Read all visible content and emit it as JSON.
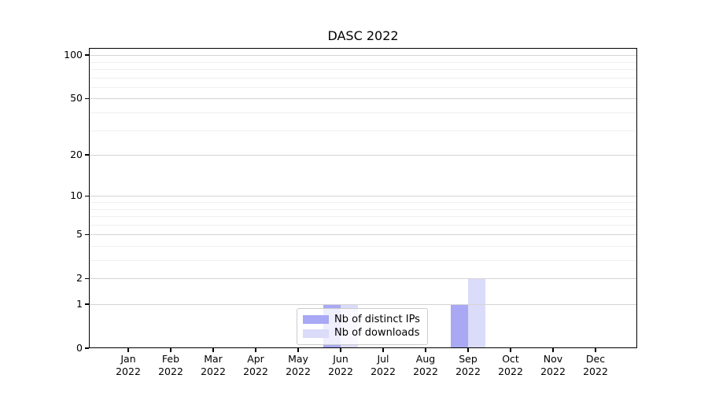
{
  "figure": {
    "background": "#ffffff"
  },
  "chart_data": {
    "type": "bar",
    "title": "DASC 2022",
    "xlabel": "",
    "ylabel": "",
    "categories": [
      "Jan 2022",
      "Feb 2022",
      "Mar 2022",
      "Apr 2022",
      "May 2022",
      "Jun 2022",
      "Jul 2022",
      "Aug 2022",
      "Sep 2022",
      "Oct 2022",
      "Nov 2022",
      "Dec 2022"
    ],
    "series": [
      {
        "name": "Nb of distinct IPs",
        "color": "#a8a8f5",
        "values": [
          0,
          0,
          0,
          0,
          0,
          1,
          0,
          0,
          1,
          0,
          0,
          0
        ]
      },
      {
        "name": "Nb of downloads",
        "color": "#dbdbfa",
        "values": [
          0,
          0,
          0,
          0,
          0,
          1,
          0,
          0,
          2,
          0,
          0,
          0
        ]
      }
    ],
    "yscale": "log1p",
    "yticks": [
      0,
      1,
      2,
      5,
      10,
      20,
      50,
      100
    ],
    "minor_gridlines": [
      3,
      4,
      6,
      7,
      8,
      9,
      30,
      40,
      60,
      70,
      80,
      90
    ],
    "ylim": [
      0,
      112
    ],
    "grid": "horizontal",
    "legend_position": "inside lower center"
  },
  "colors": {
    "major_grid": "#d4d4d4",
    "minor_grid": "#efefef",
    "axis": "#000000",
    "legend_border": "#cccccc"
  }
}
